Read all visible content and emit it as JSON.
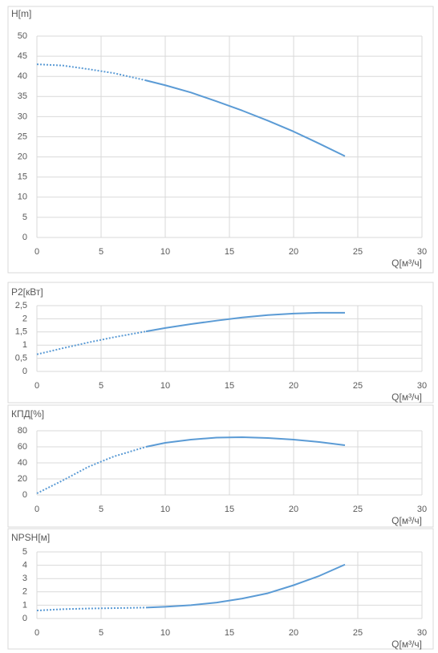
{
  "chart_data": [
    {
      "type": "line",
      "ylabel": "H[m]",
      "xlabel": "Q[м³/ч]",
      "x": [
        0,
        2,
        4,
        6,
        8.5,
        10,
        12,
        14,
        16,
        18,
        20,
        22,
        24
      ],
      "series": [
        {
          "color": "#5b9bd5",
          "dash": "dotted",
          "values": [
            43,
            42.7,
            41.8,
            40.8,
            39,
            null,
            null,
            null,
            null,
            null,
            null,
            null,
            null
          ]
        },
        {
          "color": "#5b9bd5",
          "dash": "solid",
          "values": [
            null,
            null,
            null,
            null,
            39,
            37.8,
            36,
            33.8,
            31.5,
            29,
            26.3,
            23.3,
            20.2
          ]
        }
      ],
      "xlim": [
        0,
        30
      ],
      "xticks": [
        0,
        5,
        10,
        15,
        20,
        25,
        30
      ],
      "ylim": [
        0,
        50
      ],
      "yticks": [
        0,
        5,
        10,
        15,
        20,
        25,
        30,
        35,
        40,
        45,
        50
      ],
      "grid": true
    },
    {
      "type": "line",
      "ylabel": "P2[кВт]",
      "xlabel": "Q[м³/ч]",
      "x": [
        0,
        2,
        4,
        6,
        8.5,
        10,
        12,
        14,
        16,
        18,
        20,
        22,
        24
      ],
      "series": [
        {
          "color": "#5b9bd5",
          "dash": "dotted",
          "values": [
            0.65,
            0.88,
            1.1,
            1.3,
            1.52,
            null,
            null,
            null,
            null,
            null,
            null,
            null,
            null
          ]
        },
        {
          "color": "#5b9bd5",
          "dash": "solid",
          "values": [
            null,
            null,
            null,
            null,
            1.52,
            1.65,
            1.8,
            1.93,
            2.05,
            2.14,
            2.2,
            2.23,
            2.23
          ]
        }
      ],
      "xlim": [
        0,
        30
      ],
      "xticks": [
        0,
        5,
        10,
        15,
        20,
        25,
        30
      ],
      "ylim": [
        0,
        2.5
      ],
      "yticks": [
        0,
        {
          "value": 0.5,
          "label": "0,5"
        },
        1,
        {
          "value": 1.5,
          "label": "1,5"
        },
        2,
        {
          "value": 2.5,
          "label": "2,5"
        }
      ],
      "grid": true
    },
    {
      "type": "line",
      "ylabel": "КПД[%]",
      "xlabel": "Q[м³/ч]",
      "x": [
        0,
        2,
        4,
        6,
        8.5,
        10,
        12,
        14,
        16,
        18,
        20,
        22,
        24
      ],
      "series": [
        {
          "color": "#5b9bd5",
          "dash": "dotted",
          "values": [
            2,
            18,
            35,
            48,
            60,
            null,
            null,
            null,
            null,
            null,
            null,
            null,
            null
          ]
        },
        {
          "color": "#5b9bd5",
          "dash": "solid",
          "values": [
            null,
            null,
            null,
            null,
            60,
            65,
            69,
            71.5,
            72,
            71,
            69,
            66,
            62
          ]
        }
      ],
      "xlim": [
        0,
        30
      ],
      "xticks": [
        0,
        5,
        10,
        15,
        20,
        25,
        30
      ],
      "ylim": [
        0,
        80
      ],
      "yticks": [
        0,
        20,
        40,
        60,
        80
      ],
      "grid": true
    },
    {
      "type": "line",
      "ylabel": "NPSH[м]",
      "xlabel": "Q[м³/ч]",
      "x": [
        0,
        2,
        4,
        6,
        8.5,
        10,
        12,
        14,
        16,
        18,
        20,
        22,
        24
      ],
      "series": [
        {
          "color": "#5b9bd5",
          "dash": "dotted",
          "values": [
            0.6,
            0.7,
            0.75,
            0.78,
            0.82,
            null,
            null,
            null,
            null,
            null,
            null,
            null,
            null
          ]
        },
        {
          "color": "#5b9bd5",
          "dash": "solid",
          "values": [
            null,
            null,
            null,
            null,
            0.82,
            0.88,
            1.0,
            1.2,
            1.5,
            1.9,
            2.5,
            3.2,
            4.05
          ]
        }
      ],
      "xlim": [
        0,
        30
      ],
      "xticks": [
        0,
        5,
        10,
        15,
        20,
        25,
        30
      ],
      "ylim": [
        0,
        5
      ],
      "yticks": [
        0,
        1,
        2,
        3,
        4,
        5
      ],
      "grid": true
    }
  ]
}
